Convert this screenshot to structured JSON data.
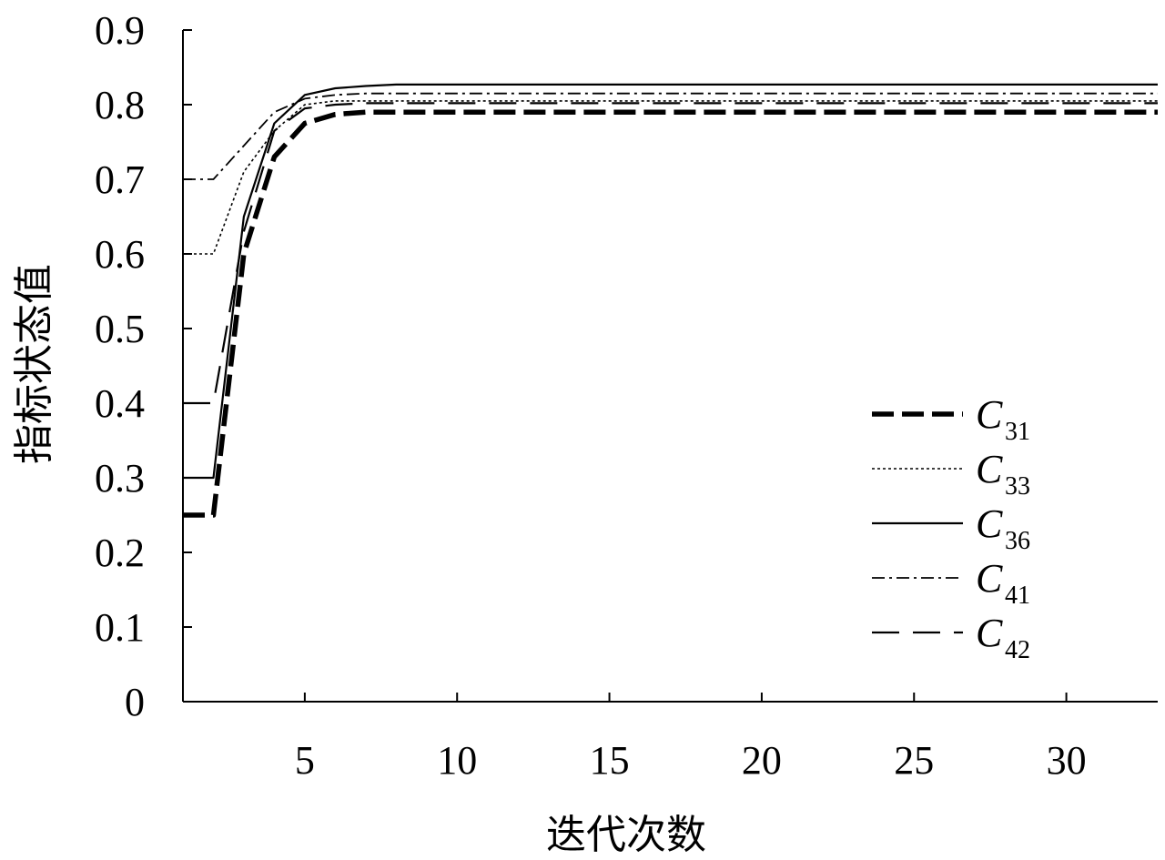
{
  "chart_data": {
    "type": "line",
    "title": "",
    "xlabel": "迭代次数",
    "ylabel": "指标状态值",
    "xlim": [
      1,
      33
    ],
    "ylim": [
      0,
      0.9
    ],
    "xticks": [
      5,
      10,
      15,
      20,
      25,
      30
    ],
    "xtick_labels": [
      "5",
      "10",
      "15",
      "20",
      "25",
      "30"
    ],
    "yticks": [
      0,
      0.1,
      0.2,
      0.3,
      0.4,
      0.5,
      0.6,
      0.7,
      0.8,
      0.9
    ],
    "ytick_labels": [
      "0",
      "0.1",
      "0.2",
      "0.3",
      "0.4",
      "0.5",
      "0.6",
      "0.7",
      "0.8",
      "0.9"
    ],
    "grid": false,
    "legend_position": "lower-right",
    "series": [
      {
        "name": "C",
        "sub": "31",
        "style": "bold-dash",
        "x": [
          1,
          2,
          3,
          4,
          5,
          6,
          7,
          8,
          33
        ],
        "y": [
          0.25,
          0.25,
          0.6,
          0.73,
          0.775,
          0.787,
          0.79,
          0.79,
          0.79
        ]
      },
      {
        "name": "C",
        "sub": "33",
        "style": "dotted",
        "x": [
          1,
          2,
          3,
          4,
          5,
          6,
          7,
          8,
          33
        ],
        "y": [
          0.6,
          0.6,
          0.71,
          0.765,
          0.8,
          0.805,
          0.805,
          0.805,
          0.805
        ]
      },
      {
        "name": "C",
        "sub": "36",
        "style": "solid",
        "x": [
          1,
          2,
          3,
          4,
          5,
          6,
          7,
          8,
          33
        ],
        "y": [
          0.3,
          0.3,
          0.65,
          0.775,
          0.813,
          0.822,
          0.825,
          0.827,
          0.827
        ]
      },
      {
        "name": "C",
        "sub": "41",
        "style": "dash-dot",
        "x": [
          1,
          2,
          3,
          4,
          5,
          6,
          7,
          8,
          33
        ],
        "y": [
          0.7,
          0.7,
          0.745,
          0.79,
          0.808,
          0.813,
          0.815,
          0.815,
          0.815
        ]
      },
      {
        "name": "C",
        "sub": "42",
        "style": "long-dash",
        "x": [
          1,
          2,
          3,
          4,
          5,
          6,
          7,
          8,
          33
        ],
        "y": [
          0.4,
          0.4,
          0.63,
          0.765,
          0.795,
          0.8,
          0.802,
          0.802,
          0.802
        ]
      }
    ]
  }
}
